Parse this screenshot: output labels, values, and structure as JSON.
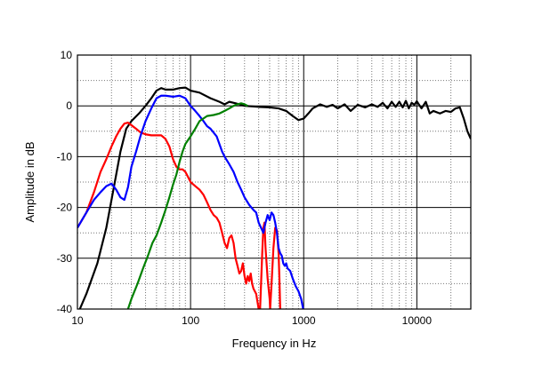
{
  "chart_data": {
    "type": "line",
    "title": "",
    "xlabel": "Frequency in Hz",
    "ylabel": "Amplitude in dB",
    "xscale": "log",
    "xlim": [
      10,
      30000
    ],
    "ylim": [
      -40,
      10
    ],
    "x_ticks": [
      {
        "value": 10,
        "label": "10"
      },
      {
        "value": 100,
        "label": "100"
      },
      {
        "value": 1000,
        "label": "1000"
      },
      {
        "value": 10000,
        "label": "10000"
      }
    ],
    "y_ticks": [
      {
        "value": 10,
        "label": "10"
      },
      {
        "value": 0,
        "label": "0"
      },
      {
        "value": -10,
        "label": "-10"
      },
      {
        "value": -20,
        "label": "-20"
      },
      {
        "value": -30,
        "label": "-30"
      },
      {
        "value": -40,
        "label": "-40"
      }
    ],
    "grid": true,
    "legend": "none",
    "series": [
      {
        "color": "#000000",
        "points": [
          [
            10.5,
            -40
          ],
          [
            12,
            -37
          ],
          [
            15,
            -31
          ],
          [
            18,
            -24
          ],
          [
            21,
            -16
          ],
          [
            24,
            -9
          ],
          [
            27,
            -4.5
          ],
          [
            30,
            -3
          ],
          [
            35,
            -1.5
          ],
          [
            40,
            0
          ],
          [
            45,
            1.5
          ],
          [
            50,
            3
          ],
          [
            55,
            3.5
          ],
          [
            60,
            3.2
          ],
          [
            70,
            3.2
          ],
          [
            80,
            3.5
          ],
          [
            90,
            3.6
          ],
          [
            100,
            3
          ],
          [
            120,
            2.6
          ],
          [
            150,
            1.5
          ],
          [
            180,
            0.8
          ],
          [
            200,
            0.3
          ],
          [
            220,
            0.8
          ],
          [
            250,
            0.5
          ],
          [
            300,
            0
          ],
          [
            400,
            -0.2
          ],
          [
            500,
            -0.3
          ],
          [
            600,
            -0.5
          ],
          [
            700,
            -1
          ],
          [
            800,
            -2
          ],
          [
            900,
            -2.8
          ],
          [
            1000,
            -2.5
          ],
          [
            1100,
            -1.5
          ],
          [
            1200,
            -0.5
          ],
          [
            1400,
            0.3
          ],
          [
            1600,
            -0.2
          ],
          [
            1800,
            0.2
          ],
          [
            2000,
            -0.5
          ],
          [
            2300,
            0.3
          ],
          [
            2600,
            -1
          ],
          [
            3000,
            0.2
          ],
          [
            3500,
            -0.3
          ],
          [
            4000,
            0.3
          ],
          [
            4500,
            -0.2
          ],
          [
            5000,
            0.6
          ],
          [
            5500,
            -0.5
          ],
          [
            6000,
            0.8
          ],
          [
            6500,
            -0.2
          ],
          [
            7000,
            0.8
          ],
          [
            7500,
            -0.3
          ],
          [
            8000,
            1.0
          ],
          [
            8500,
            -0.5
          ],
          [
            9000,
            0.6
          ],
          [
            9500,
            0.2
          ],
          [
            10000,
            0.9
          ],
          [
            11000,
            -0.5
          ],
          [
            12000,
            0.8
          ],
          [
            13000,
            -1.5
          ],
          [
            14000,
            -1.0
          ],
          [
            16000,
            -1.5
          ],
          [
            18000,
            -1.0
          ],
          [
            20000,
            -1.2
          ],
          [
            22000,
            -0.5
          ],
          [
            24000,
            -0.3
          ],
          [
            26000,
            -2.5
          ],
          [
            28000,
            -5
          ],
          [
            30000,
            -6.5
          ]
        ]
      },
      {
        "color": "#ff0000",
        "points": [
          [
            10,
            -24
          ],
          [
            12,
            -21
          ],
          [
            14,
            -17
          ],
          [
            16,
            -13
          ],
          [
            18,
            -10.5
          ],
          [
            20,
            -8
          ],
          [
            22,
            -6
          ],
          [
            24,
            -4.5
          ],
          [
            26,
            -3.5
          ],
          [
            28,
            -3.3
          ],
          [
            30,
            -3.8
          ],
          [
            33,
            -4.5
          ],
          [
            36,
            -5.2
          ],
          [
            40,
            -5.6
          ],
          [
            45,
            -5.8
          ],
          [
            50,
            -5.8
          ],
          [
            55,
            -5.8
          ],
          [
            60,
            -6.5
          ],
          [
            65,
            -8
          ],
          [
            70,
            -10.5
          ],
          [
            75,
            -12
          ],
          [
            80,
            -12.5
          ],
          [
            85,
            -12.5
          ],
          [
            90,
            -13
          ],
          [
            95,
            -14
          ],
          [
            100,
            -15
          ],
          [
            110,
            -15.8
          ],
          [
            120,
            -16.5
          ],
          [
            130,
            -17.5
          ],
          [
            140,
            -19
          ],
          [
            150,
            -20.5
          ],
          [
            160,
            -21.5
          ],
          [
            170,
            -22
          ],
          [
            180,
            -23
          ],
          [
            190,
            -25
          ],
          [
            200,
            -27
          ],
          [
            210,
            -28
          ],
          [
            220,
            -26
          ],
          [
            230,
            -25.5
          ],
          [
            240,
            -27
          ],
          [
            250,
            -30
          ],
          [
            260,
            -31.5
          ],
          [
            270,
            -33
          ],
          [
            280,
            -32.5
          ],
          [
            290,
            -31
          ],
          [
            300,
            -33.5
          ],
          [
            310,
            -35
          ],
          [
            320,
            -33.5
          ],
          [
            330,
            -34.5
          ],
          [
            340,
            -33
          ],
          [
            350,
            -35
          ],
          [
            360,
            -36
          ],
          [
            380,
            -37
          ],
          [
            400,
            -40
          ],
          [
            410,
            -41
          ],
          [
            420,
            -35
          ],
          [
            430,
            -29
          ],
          [
            440,
            -24
          ],
          [
            450,
            -23
          ],
          [
            460,
            -28
          ],
          [
            480,
            -34
          ],
          [
            500,
            -38
          ],
          [
            505,
            -40
          ],
          [
            520,
            -35
          ],
          [
            540,
            -28
          ],
          [
            560,
            -24
          ],
          [
            580,
            -24.5
          ],
          [
            600,
            -29
          ],
          [
            610,
            -34
          ],
          [
            620,
            -40
          ]
        ]
      },
      {
        "color": "#0000ff",
        "points": [
          [
            10,
            -24
          ],
          [
            12,
            -21
          ],
          [
            14,
            -18.5
          ],
          [
            16,
            -17
          ],
          [
            18,
            -15.8
          ],
          [
            20,
            -15.3
          ],
          [
            22,
            -16.5
          ],
          [
            24,
            -18
          ],
          [
            26,
            -18.5
          ],
          [
            28,
            -16
          ],
          [
            30,
            -12
          ],
          [
            33,
            -9
          ],
          [
            36,
            -6
          ],
          [
            40,
            -3
          ],
          [
            45,
            -0.5
          ],
          [
            50,
            1.5
          ],
          [
            55,
            2
          ],
          [
            60,
            2
          ],
          [
            70,
            1.8
          ],
          [
            80,
            2
          ],
          [
            90,
            1.5
          ],
          [
            100,
            0
          ],
          [
            110,
            -1
          ],
          [
            120,
            -2
          ],
          [
            130,
            -3
          ],
          [
            140,
            -4
          ],
          [
            150,
            -4.5
          ],
          [
            170,
            -6
          ],
          [
            190,
            -9
          ],
          [
            200,
            -10
          ],
          [
            220,
            -11.5
          ],
          [
            240,
            -13
          ],
          [
            260,
            -15
          ],
          [
            280,
            -16.5
          ],
          [
            300,
            -18
          ],
          [
            330,
            -19.5
          ],
          [
            360,
            -20.5
          ],
          [
            380,
            -21
          ],
          [
            400,
            -23
          ],
          [
            420,
            -24
          ],
          [
            440,
            -25
          ],
          [
            460,
            -23
          ],
          [
            480,
            -21.5
          ],
          [
            500,
            -22.5
          ],
          [
            520,
            -21
          ],
          [
            540,
            -21.5
          ],
          [
            560,
            -23
          ],
          [
            580,
            -25
          ],
          [
            600,
            -28
          ],
          [
            620,
            -29
          ],
          [
            640,
            -29.5
          ],
          [
            660,
            -31
          ],
          [
            680,
            -31.5
          ],
          [
            700,
            -31
          ],
          [
            720,
            -32
          ],
          [
            760,
            -32.5
          ],
          [
            800,
            -34
          ],
          [
            850,
            -35.5
          ],
          [
            900,
            -36.5
          ],
          [
            950,
            -38
          ],
          [
            1000,
            -40.5
          ]
        ]
      },
      {
        "color": "#008000",
        "points": [
          [
            28,
            -40
          ],
          [
            30,
            -38
          ],
          [
            34,
            -35
          ],
          [
            38,
            -32
          ],
          [
            42,
            -29.5
          ],
          [
            46,
            -27
          ],
          [
            50,
            -25.5
          ],
          [
            55,
            -23
          ],
          [
            60,
            -20.5
          ],
          [
            65,
            -18
          ],
          [
            70,
            -15.5
          ],
          [
            75,
            -13.5
          ],
          [
            80,
            -11
          ],
          [
            85,
            -9
          ],
          [
            90,
            -7.5
          ],
          [
            100,
            -6
          ],
          [
            110,
            -4.5
          ],
          [
            120,
            -3
          ],
          [
            140,
            -2
          ],
          [
            160,
            -1.8
          ],
          [
            180,
            -1.5
          ],
          [
            200,
            -1
          ],
          [
            220,
            -0.5
          ],
          [
            240,
            0
          ],
          [
            260,
            0.3
          ],
          [
            280,
            0.5
          ],
          [
            300,
            0.3
          ],
          [
            320,
            0
          ]
        ]
      }
    ]
  }
}
